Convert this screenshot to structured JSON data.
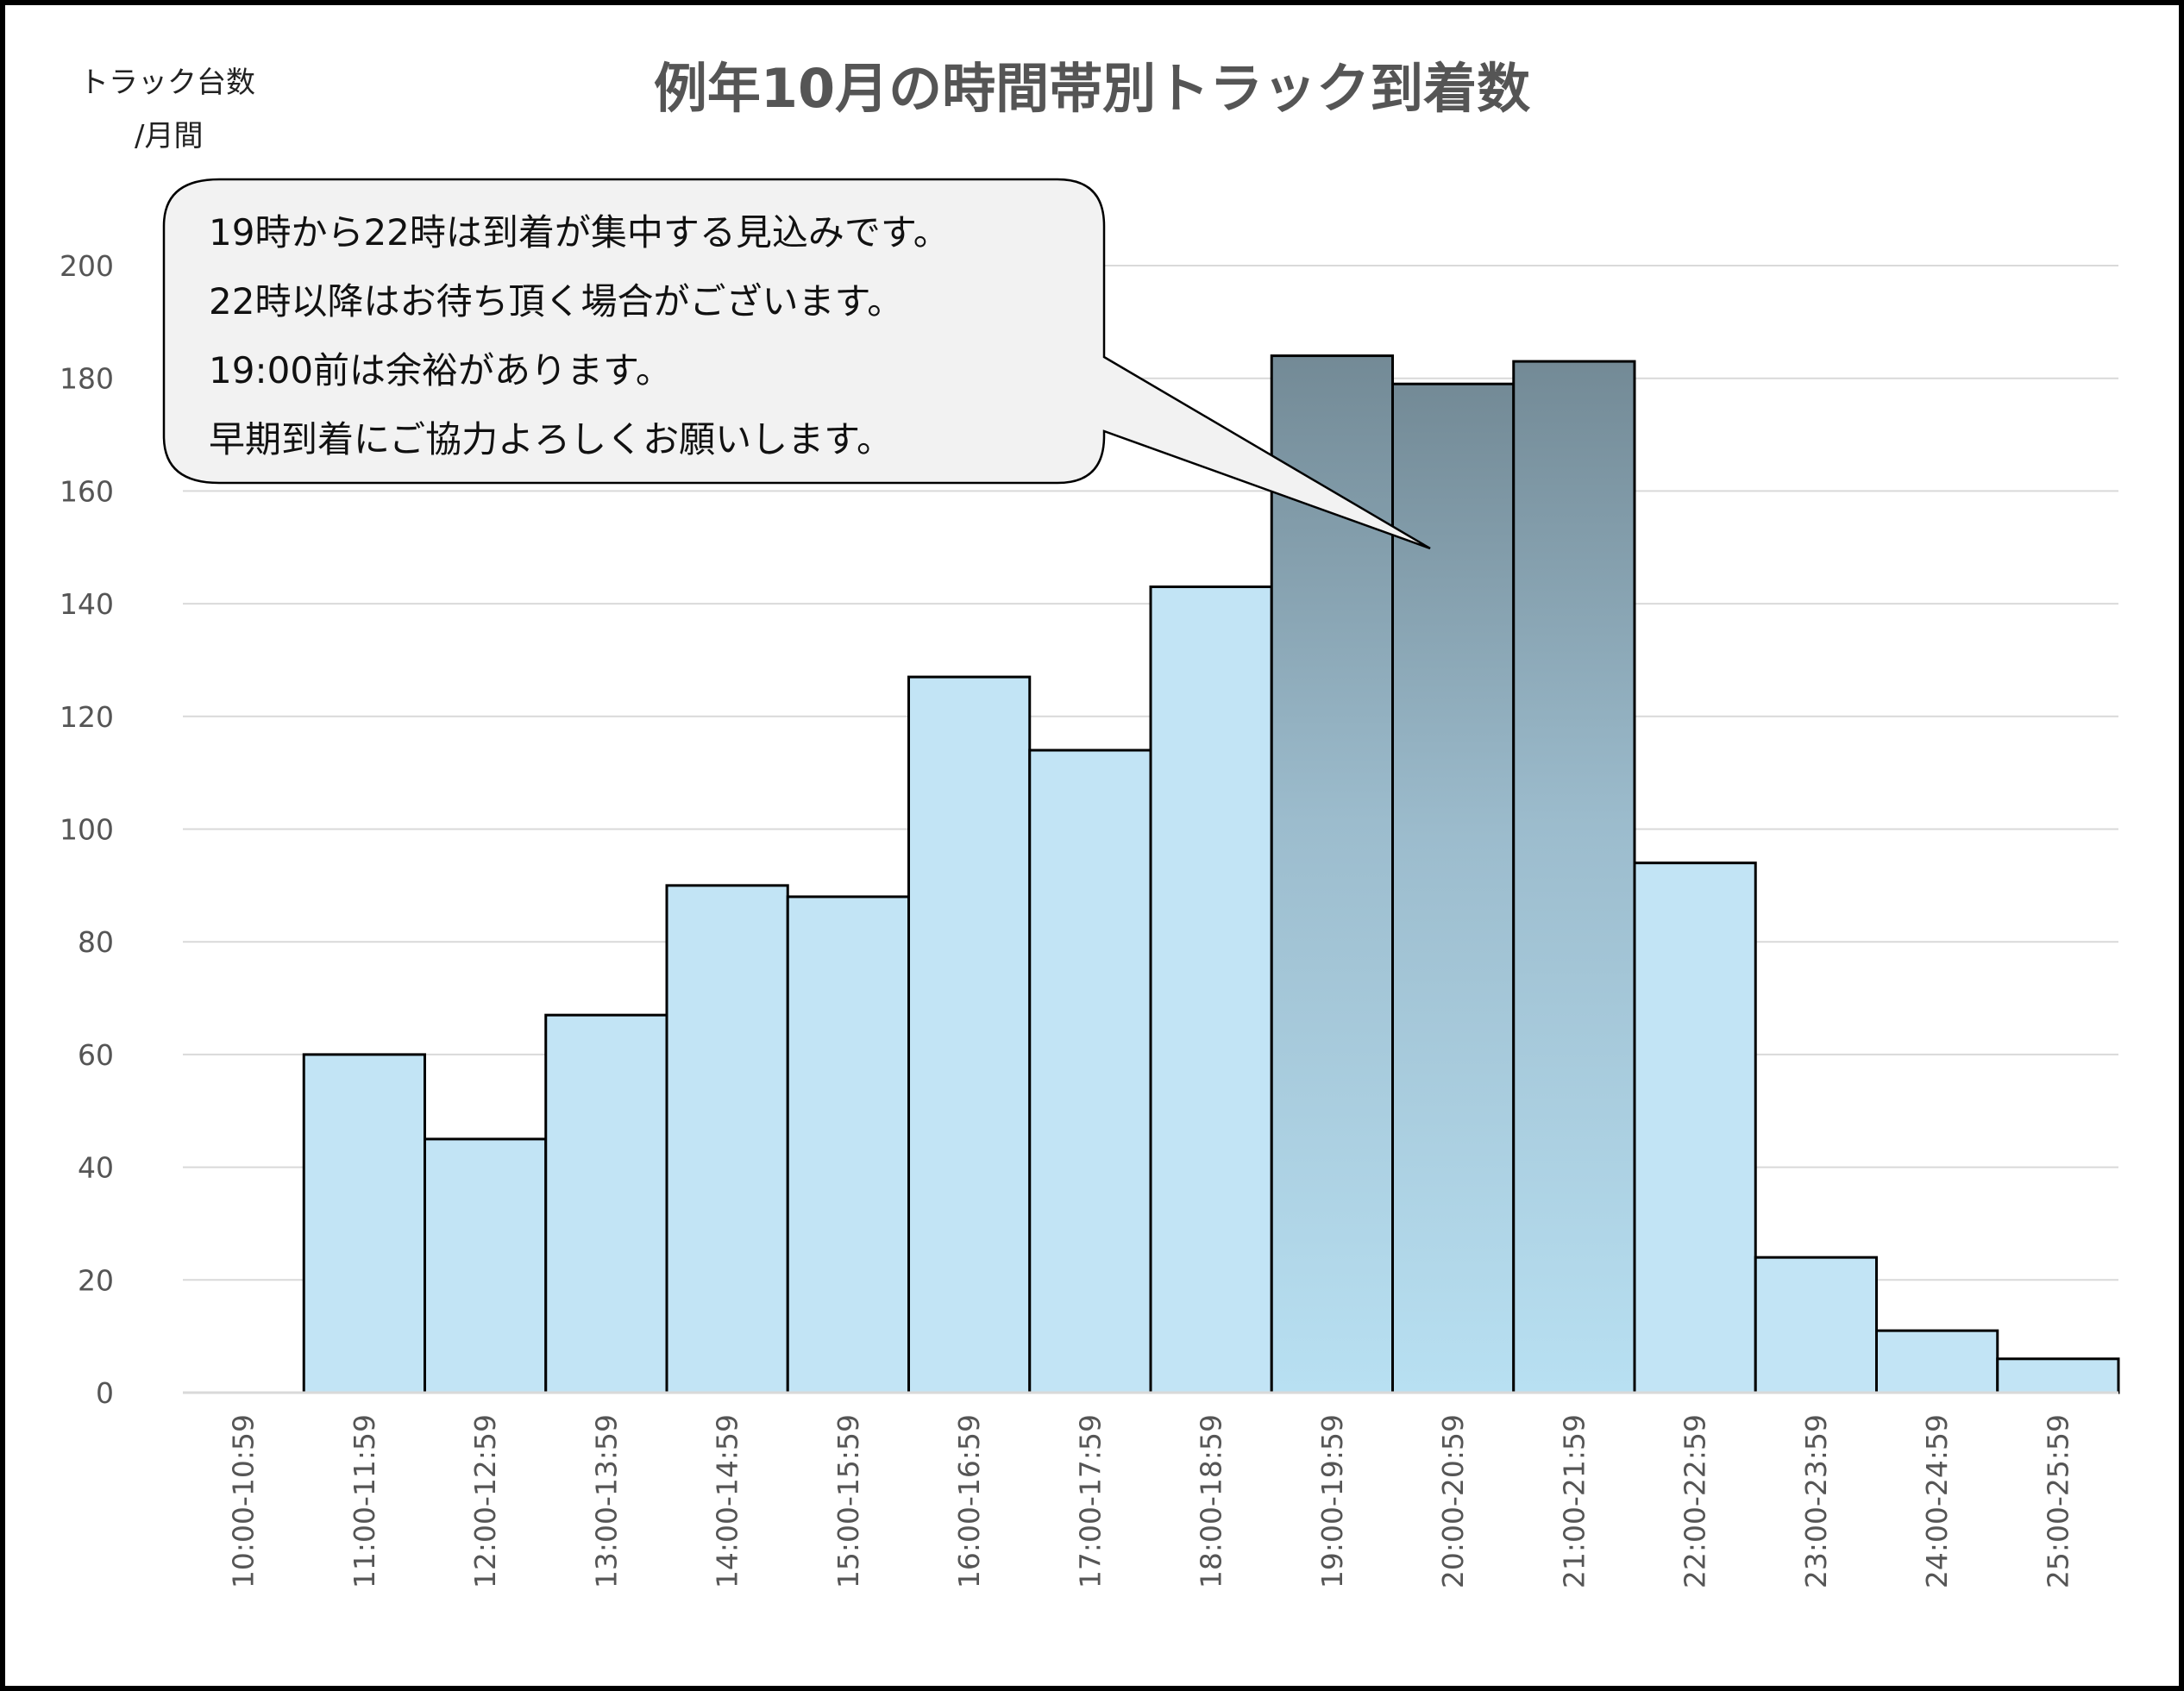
{
  "chart_data": {
    "type": "bar",
    "title": "例年10月の時間帯別トラック到着数",
    "ylabel_lines": [
      "トラック台数",
      "/月間"
    ],
    "xlabel": "",
    "categories": [
      "10:00-10:59",
      "11:00-11:59",
      "12:00-12:59",
      "13:00-13:59",
      "14:00-14:59",
      "15:00-15:59",
      "16:00-16:59",
      "17:00-17:59",
      "18:00-18:59",
      "19:00-19:59",
      "20:00-20:59",
      "21:00-21:59",
      "22:00-22:59",
      "23:00-23:59",
      "24:00-24:59",
      "25:00-25:59"
    ],
    "values": [
      0,
      60,
      45,
      67,
      90,
      88,
      127,
      114,
      143,
      184,
      179,
      183,
      94,
      24,
      11,
      6
    ],
    "highlighted_categories": [
      "19:00-19:59",
      "20:00-20:59",
      "21:00-21:59"
    ],
    "ylim": [
      0,
      200
    ],
    "yticks": [
      0,
      20,
      40,
      60,
      80,
      100,
      120,
      140,
      160,
      180,
      200
    ],
    "grid": true,
    "legend": "none",
    "annotation": {
      "lines": [
        "19時から22時は到着が集中する見込みです。",
        "22時以降はお待ち頂く場合がございます。",
        "19:00前は余裕があります。",
        "早期到着にご協力よろしくお願いします。"
      ]
    },
    "colors": {
      "bar": "#c2e4f5",
      "highlight_top": "#738a96",
      "highlight_bottom": "#b8e0f2",
      "bar_stroke": "#000000",
      "grid": "#d9d9d9",
      "callout_fill": "#f2f2f2"
    }
  }
}
